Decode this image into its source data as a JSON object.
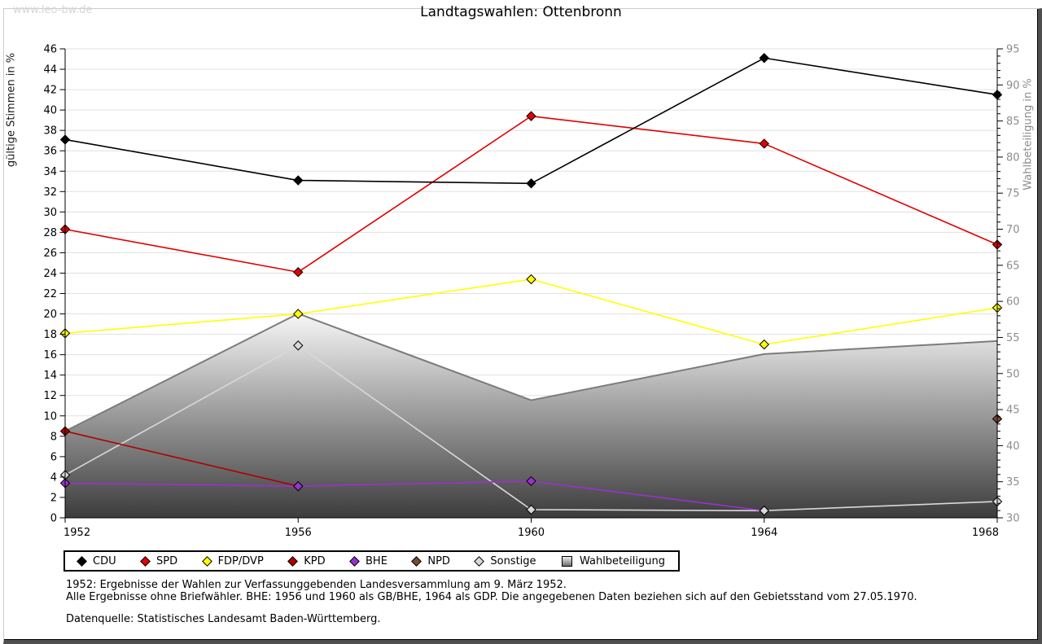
{
  "watermark": "www.leo-bw.de",
  "title": "Landtagswahlen: Ottenbronn",
  "axes": {
    "left_label": "gültige Stimmen in %",
    "right_label": "Wahlbeteiligung in %"
  },
  "footer": {
    "line1": "1952: Ergebnisse der Wahlen zur Verfassunggebenden Landesversammlung am 9. März 1952.",
    "line2": "Alle Ergebnisse ohne Briefwähler. BHE: 1956 und 1960 als GB/BHE, 1964 als GDP. Die angegebenen Daten beziehen sich auf den Gebietsstand vom 27.05.1970.",
    "source": "Datenquelle: Statistisches Landesamt Baden-Württemberg."
  },
  "colors": {
    "grid": "#e0e0e0",
    "axis": "#000000",
    "right_axis_text": "#8c8c8c",
    "area_edge": "#7c7c7c",
    "area_gradient_top": "#f7f7f7",
    "area_gradient_bottom": "#3c3c3c"
  },
  "chart_data": {
    "type": "line",
    "x": [
      1952,
      1956,
      1960,
      1964,
      1968
    ],
    "left_axis": {
      "label": "gültige Stimmen in %",
      "min": 0,
      "max": 46,
      "tick_step": 2
    },
    "right_axis": {
      "label": "Wahlbeteiligung in %",
      "min": 30,
      "max": 95,
      "tick_step": 5,
      "minor_tick_step": 1
    },
    "grid": "horizontal",
    "legend_position": "bottom",
    "series": [
      {
        "name": "CDU",
        "color": "#000000",
        "axis": "left",
        "marker": "diamond",
        "values": [
          37.1,
          33.1,
          32.8,
          45.1,
          41.5
        ]
      },
      {
        "name": "SPD",
        "color": "#e00000",
        "axis": "left",
        "marker": "diamond",
        "values": [
          28.3,
          24.1,
          39.4,
          36.7,
          26.8
        ]
      },
      {
        "name": "FDP/DVP",
        "color": "#ffff00",
        "axis": "left",
        "marker": "diamond",
        "values": [
          18.1,
          20.0,
          23.4,
          17.0,
          20.6
        ]
      },
      {
        "name": "KPD",
        "color": "#b00000",
        "axis": "left",
        "marker": "diamond",
        "values": [
          8.5,
          3.1,
          null,
          null,
          null
        ]
      },
      {
        "name": "BHE",
        "color": "#9932cc",
        "axis": "left",
        "marker": "diamond",
        "values": [
          3.4,
          3.1,
          3.6,
          0.7,
          null
        ]
      },
      {
        "name": "NPD",
        "color": "#7a4a33",
        "axis": "left",
        "marker": "diamond",
        "values": [
          null,
          null,
          null,
          null,
          9.7
        ]
      },
      {
        "name": "Sonstige",
        "color": "#d8d8d8",
        "axis": "left",
        "marker": "diamond",
        "values": [
          4.2,
          16.9,
          0.8,
          0.7,
          1.6
        ]
      },
      {
        "name": "Wahlbeteiligung",
        "color": "#9c9c9c",
        "axis": "right",
        "marker": "square",
        "type": "area",
        "values": [
          42.0,
          58.3,
          46.3,
          52.7,
          54.5
        ]
      }
    ]
  }
}
